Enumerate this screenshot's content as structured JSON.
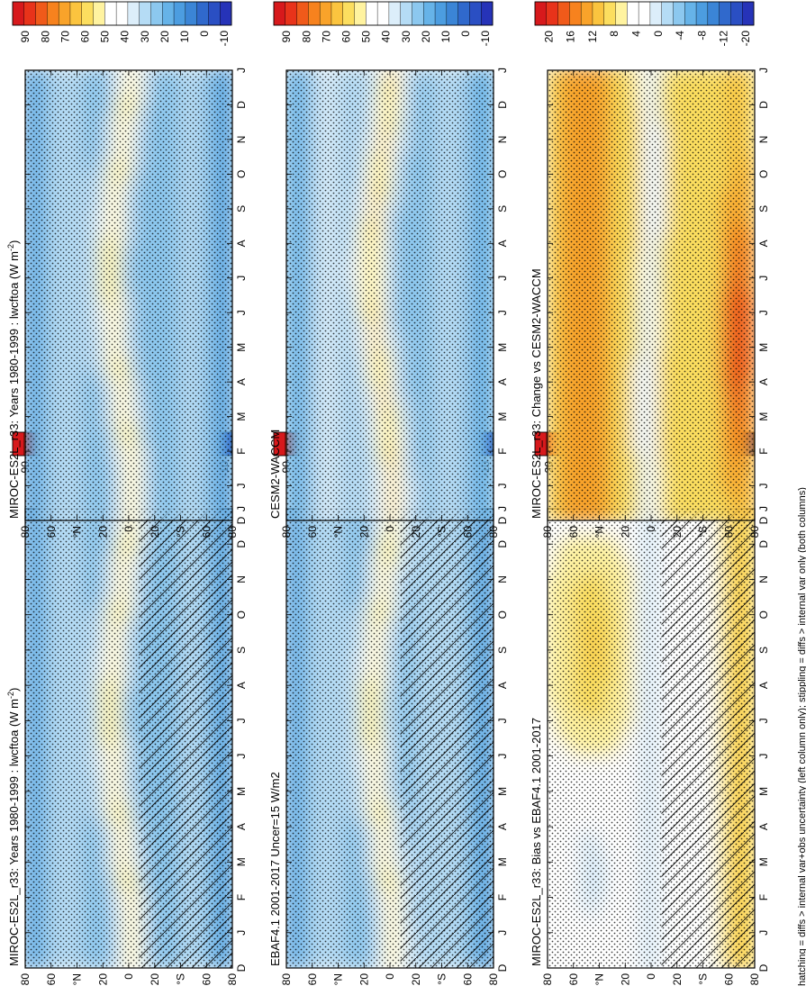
{
  "months": [
    "D",
    "J",
    "F",
    "M",
    "A",
    "M",
    "J",
    "J",
    "A",
    "S",
    "O",
    "N",
    "D",
    "J"
  ],
  "lat_ticks": [
    "80",
    "60",
    "°N",
    "20",
    "0",
    "20",
    "°S",
    "60",
    "80"
  ],
  "colorbars": {
    "absolute": {
      "labels": [
        "90",
        "80",
        "70",
        "60",
        "50",
        "40",
        "30",
        "20",
        "10",
        "0",
        "-10"
      ],
      "colors": [
        "#d7191c",
        "#e8331a",
        "#f05a1a",
        "#f7821e",
        "#f9a32a",
        "#fbc43f",
        "#fcde5f",
        "#fff3a0",
        "#ffffff",
        "#ffffff",
        "#dceefa",
        "#b5dcf5",
        "#8cc8ef",
        "#66b3e8",
        "#4c9de0",
        "#3b85d6",
        "#3069cc",
        "#2a4fc3",
        "#2633b8"
      ]
    },
    "difference": {
      "labels": [
        "20",
        "16",
        "12",
        "8",
        "4",
        "0",
        "-4",
        "-8",
        "-12",
        "-20"
      ],
      "colors": [
        "#d7191c",
        "#e8331a",
        "#f05a1a",
        "#f7821e",
        "#f9a32a",
        "#fbc43f",
        "#fcde5f",
        "#fff3a0",
        "#ffffff",
        "#ffffff",
        "#dceefa",
        "#b5dcf5",
        "#8cc8ef",
        "#66b3e8",
        "#4c9de0",
        "#3b85d6",
        "#3069cc",
        "#2a4fc3",
        "#2633b8"
      ]
    }
  },
  "panels": [
    {
      "id": "p1",
      "title": "MIROC-ES2L_r33: Years 1980-1999 : lwcftoa (W m",
      "title_sup": "-2",
      "title_end": ")"
    },
    {
      "id": "p2",
      "title": "MIROC-ES2L_r33: Years 1980-1999 : lwcftoa (W m",
      "title_sup": "-2",
      "title_end": ")"
    },
    {
      "id": "p3",
      "title": "EBAF4.1 2001-2017 Uncer=15 W/m2",
      "title_sup": "",
      "title_end": ""
    },
    {
      "id": "p4",
      "title": "CESM2-WACCM",
      "title_sup": "",
      "title_end": ""
    },
    {
      "id": "p5",
      "title": "MIROC-ES2L_r33: Bias vs EBAF4.1 2001-2017",
      "title_sup": "",
      "title_end": ""
    },
    {
      "id": "p6",
      "title": "MIROC-ES2L_r33: Change vs CESM2-WACCM",
      "title_sup": "",
      "title_end": ""
    }
  ],
  "footnote": "hatching = diffs > internal var+obs uncertainty (left column only); stippling = diffs > internal var only (both columns)",
  "chart_data": [
    {
      "type": "heatmap",
      "title": "MIROC-ES2L_r33: Years 1980-1999 : lwcftoa (W m-2)",
      "x": [
        "D",
        "J",
        "F",
        "M",
        "A",
        "M",
        "J",
        "J",
        "A",
        "S",
        "O",
        "N",
        "D",
        "J"
      ],
      "y": [
        "80",
        "60",
        "°N",
        "20",
        "0",
        "20",
        "°S",
        "60",
        "80"
      ],
      "colorbar": [
        "90",
        "80",
        "70",
        "60",
        "50",
        "40",
        "30",
        "20",
        "10",
        "0",
        "-10"
      ]
    },
    {
      "type": "heatmap",
      "title": "MIROC-ES2L_r33: Years 1980-1999 : lwcftoa (W m-2)",
      "x": [
        "D",
        "J",
        "F",
        "M",
        "A",
        "M",
        "J",
        "J",
        "A",
        "S",
        "O",
        "N",
        "D",
        "J"
      ],
      "y": [
        "80",
        "60",
        "°N",
        "20",
        "0",
        "20",
        "°S",
        "60",
        "80"
      ],
      "colorbar": [
        "90",
        "80",
        "70",
        "60",
        "50",
        "40",
        "30",
        "20",
        "10",
        "0",
        "-10"
      ]
    },
    {
      "type": "heatmap",
      "title": "EBAF4.1 2001-2017 Uncer=15 W/m2",
      "x": [
        "D",
        "J",
        "F",
        "M",
        "A",
        "M",
        "J",
        "J",
        "A",
        "S",
        "O",
        "N",
        "D",
        "J"
      ],
      "y": [
        "80",
        "60",
        "°N",
        "20",
        "0",
        "20",
        "°S",
        "60",
        "80"
      ],
      "colorbar": [
        "90",
        "80",
        "70",
        "60",
        "50",
        "40",
        "30",
        "20",
        "10",
        "0",
        "-10"
      ]
    },
    {
      "type": "heatmap",
      "title": "CESM2-WACCM",
      "x": [
        "D",
        "J",
        "F",
        "M",
        "A",
        "M",
        "J",
        "J",
        "A",
        "S",
        "O",
        "N",
        "D",
        "J"
      ],
      "y": [
        "80",
        "60",
        "°N",
        "20",
        "0",
        "20",
        "°S",
        "60",
        "80"
      ],
      "colorbar": [
        "90",
        "80",
        "70",
        "60",
        "50",
        "40",
        "30",
        "20",
        "10",
        "0",
        "-10"
      ]
    },
    {
      "type": "heatmap",
      "title": "MIROC-ES2L_r33: Bias vs EBAF4.1 2001-2017",
      "x": [
        "D",
        "J",
        "F",
        "M",
        "A",
        "M",
        "J",
        "J",
        "A",
        "S",
        "O",
        "N",
        "D",
        "J"
      ],
      "y": [
        "80",
        "60",
        "°N",
        "20",
        "0",
        "20",
        "°S",
        "60",
        "80"
      ],
      "colorbar": [
        "20",
        "16",
        "12",
        "8",
        "4",
        "0",
        "-4",
        "-8",
        "-12",
        "-20"
      ]
    },
    {
      "type": "heatmap",
      "title": "MIROC-ES2L_r33: Change vs CESM2-WACCM",
      "x": [
        "D",
        "J",
        "F",
        "M",
        "A",
        "M",
        "J",
        "J",
        "A",
        "S",
        "O",
        "N",
        "D",
        "J"
      ],
      "y": [
        "80",
        "60",
        "°N",
        "20",
        "0",
        "20",
        "°S",
        "60",
        "80"
      ],
      "colorbar": [
        "20",
        "16",
        "12",
        "8",
        "4",
        "0",
        "-4",
        "-8",
        "-12",
        "-20"
      ]
    }
  ]
}
